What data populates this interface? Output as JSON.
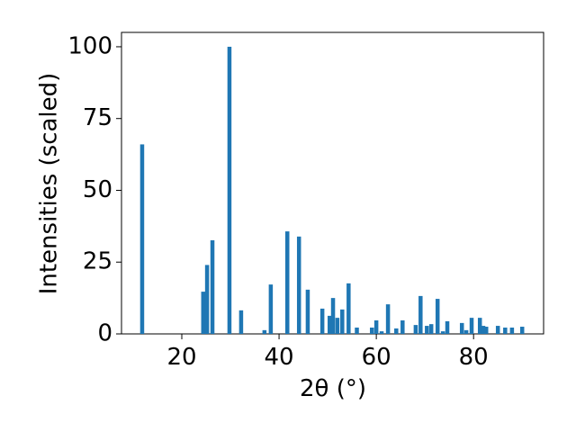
{
  "chart_data": {
    "type": "bar",
    "xlabel": "2θ (°)",
    "ylabel": "Intensities (scaled)",
    "color": "#1f77b4",
    "x": [
      11.85,
      24.4,
      25.2,
      26.3,
      29.8,
      32.2,
      37,
      38.3,
      41.7,
      44.1,
      45.9,
      48.9,
      50.4,
      51.1,
      52,
      53,
      54.3,
      56,
      59.1,
      60,
      61.1,
      62.4,
      64.1,
      65.4,
      68.1,
      69.1,
      70.4,
      71.3,
      72.6,
      73.7,
      74.6,
      77.6,
      78.5,
      79.6,
      81.3,
      82,
      82.6,
      85,
      86.5,
      87.9,
      90
    ],
    "values": [
      66,
      14.7,
      24,
      32.6,
      100,
      8.2,
      1.3,
      17.2,
      35.7,
      33.9,
      15.4,
      8.8,
      6.3,
      12.5,
      5.6,
      8.5,
      17.6,
      2.2,
      2.2,
      4.7,
      0.9,
      10.3,
      1.9,
      4.7,
      3.1,
      13.2,
      2.8,
      3.4,
      12.2,
      0.9,
      4.4,
      3.8,
      1.3,
      5.6,
      5.6,
      2.8,
      2.5,
      2.8,
      2.2,
      2.2,
      2.5
    ],
    "xlim": [
      7.6,
      94.4
    ],
    "ylim": [
      0,
      105
    ],
    "xticks": [
      20,
      40,
      60,
      80
    ],
    "yticks": [
      0,
      25,
      50,
      75,
      100
    ]
  }
}
